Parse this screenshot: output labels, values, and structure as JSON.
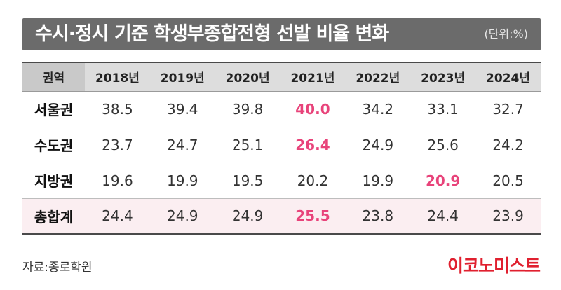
{
  "title": "수시·정시 기준 학생부종합전형 선발 비율 변화",
  "unit": "(단위:%)",
  "table": {
    "headers": [
      "권역",
      "2018년",
      "2019년",
      "2020년",
      "2021년",
      "2022년",
      "2023년",
      "2024년"
    ],
    "rows": [
      {
        "region": "서울권",
        "values": [
          "38.5",
          "39.4",
          "39.8",
          "40.0",
          "34.2",
          "33.1",
          "32.7"
        ],
        "highlight": [
          3
        ]
      },
      {
        "region": "수도권",
        "values": [
          "23.7",
          "24.7",
          "25.1",
          "26.4",
          "24.9",
          "25.6",
          "24.2"
        ],
        "highlight": [
          3
        ]
      },
      {
        "region": "지방권",
        "values": [
          "19.6",
          "19.9",
          "19.5",
          "20.2",
          "19.9",
          "20.9",
          "20.5"
        ],
        "highlight": [
          5
        ]
      },
      {
        "region": "총합계",
        "values": [
          "24.4",
          "24.9",
          "24.9",
          "25.5",
          "23.8",
          "24.4",
          "23.9"
        ],
        "highlight": [
          3
        ]
      }
    ]
  },
  "source": "자료:종로학원",
  "brand": "이코노미스트",
  "colors": {
    "highlight": "#e8437a",
    "brand": "#e0202f",
    "title_bg": "#6b6b6b",
    "total_bg": "#fbeef1"
  }
}
